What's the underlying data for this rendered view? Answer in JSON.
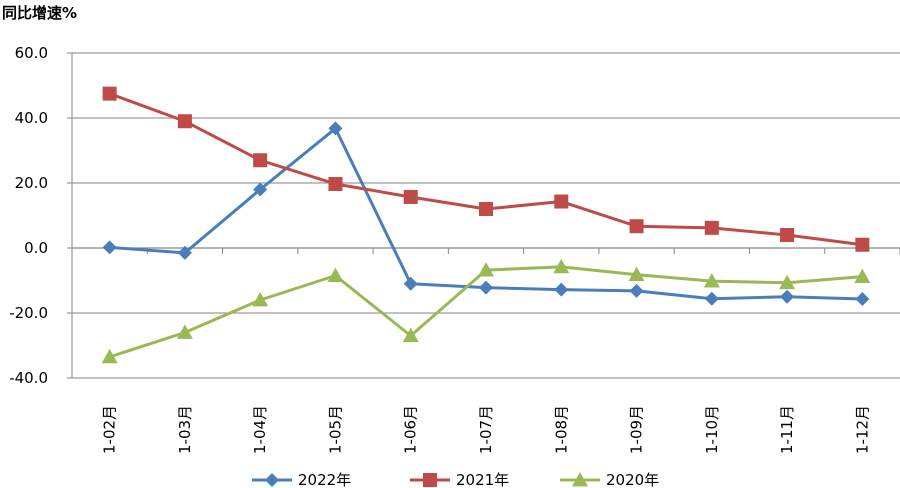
{
  "chart_data": {
    "type": "line",
    "ylabel": "同比增速%",
    "ylim": [
      -40,
      60
    ],
    "yticks": [
      60,
      40,
      20,
      0,
      -20,
      -40
    ],
    "ytick_labels": [
      "60.0",
      "40.0",
      "20.0",
      "0.0",
      "-20.0",
      "-40.0"
    ],
    "grid": true,
    "legend_position": "bottom",
    "categories": [
      "1-02月",
      "1-03月",
      "1-04月",
      "1-05月",
      "1-06月",
      "1-07月",
      "1-08月",
      "1-09月",
      "1-10月",
      "1-11月",
      "1-12月"
    ],
    "series": [
      {
        "name": "2022年",
        "color": "#4A7EBB",
        "marker": "diamond",
        "values": [
          0.2,
          -1.5,
          18.0,
          36.8,
          -11.0,
          -12.2,
          -12.8,
          -13.2,
          -15.6,
          -15.0,
          -15.7
        ]
      },
      {
        "name": "2021年",
        "color": "#BE4B48",
        "marker": "square",
        "values": [
          47.5,
          39.0,
          27.0,
          19.7,
          15.7,
          12.0,
          14.3,
          6.7,
          6.2,
          4.0,
          1.0
        ]
      },
      {
        "name": "2020年",
        "color": "#98B954",
        "marker": "triangle",
        "values": [
          -33.5,
          -26.0,
          -16.0,
          -8.5,
          -27.0,
          -6.8,
          -5.8,
          -8.2,
          -10.2,
          -10.7,
          -8.8
        ]
      }
    ]
  }
}
